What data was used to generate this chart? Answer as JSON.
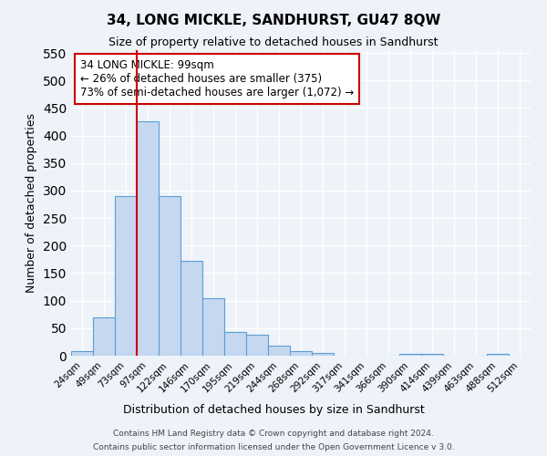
{
  "title": "34, LONG MICKLE, SANDHURST, GU47 8QW",
  "subtitle": "Size of property relative to detached houses in Sandhurst",
  "xlabel": "Distribution of detached houses by size in Sandhurst",
  "ylabel": "Number of detached properties",
  "bin_labels": [
    "24sqm",
    "49sqm",
    "73sqm",
    "97sqm",
    "122sqm",
    "146sqm",
    "170sqm",
    "195sqm",
    "219sqm",
    "244sqm",
    "268sqm",
    "292sqm",
    "317sqm",
    "341sqm",
    "366sqm",
    "390sqm",
    "414sqm",
    "439sqm",
    "463sqm",
    "488sqm",
    "512sqm"
  ],
  "bar_heights": [
    8,
    70,
    290,
    425,
    290,
    173,
    105,
    43,
    38,
    19,
    8,
    5,
    0,
    0,
    0,
    4,
    4,
    0,
    0,
    4,
    0
  ],
  "bar_color": "#c5d8f0",
  "bar_edge_color": "#5a9fd4",
  "bar_width": 1.0,
  "property_line_x": 2.5,
  "property_line_color": "#cc0000",
  "ylim": [
    0,
    555
  ],
  "yticks": [
    0,
    50,
    100,
    150,
    200,
    250,
    300,
    350,
    400,
    450,
    500,
    550
  ],
  "annotation_title": "34 LONG MICKLE: 99sqm",
  "annotation_line1": "← 26% of detached houses are smaller (375)",
  "annotation_line2": "73% of semi-detached houses are larger (1,072) →",
  "annotation_box_color": "#cc0000",
  "footer1": "Contains HM Land Registry data © Crown copyright and database right 2024.",
  "footer2": "Contains public sector information licensed under the Open Government Licence v 3.0.",
  "background_color": "#eef2f9",
  "grid_color": "#ffffff"
}
